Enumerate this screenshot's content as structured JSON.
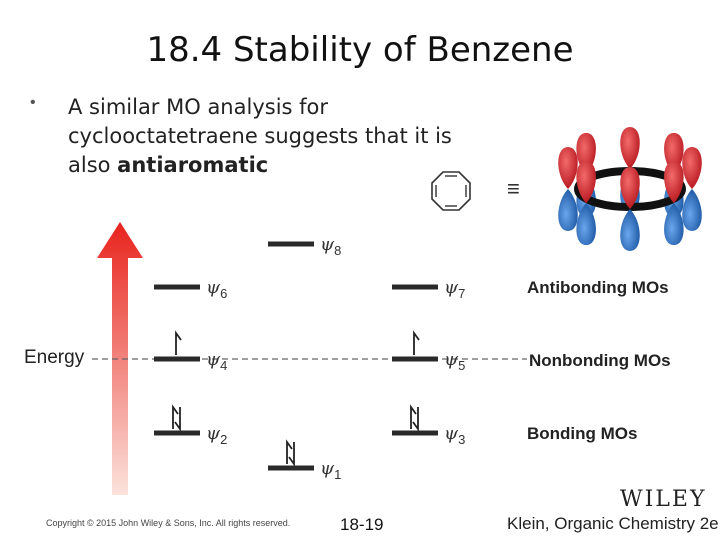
{
  "slide": {
    "title": "18.4 Stability of Benzene",
    "bullet_marker": "•",
    "bullet_text_1": "A similar MO analysis for cyclooctatetraene suggests that it is also ",
    "bullet_text_bold": "antiaromatic",
    "equiv_symbol": "≡"
  },
  "diagram": {
    "energy_label": "Energy",
    "group_labels": {
      "antibonding": "Antibonding MOs",
      "nonbonding": "Nonbonding MOs",
      "bonding": "Bonding MOs"
    },
    "mo_levels": [
      {
        "name": "ψ8",
        "sub": "8",
        "electrons": 0
      },
      {
        "name": "ψ6",
        "sub": "6",
        "electrons": 0
      },
      {
        "name": "ψ7",
        "sub": "7",
        "electrons": 0
      },
      {
        "name": "ψ4",
        "sub": "4",
        "electrons": 1
      },
      {
        "name": "ψ5",
        "sub": "5",
        "electrons": 1
      },
      {
        "name": "ψ2",
        "sub": "2",
        "electrons": 2
      },
      {
        "name": "ψ3",
        "sub": "3",
        "electrons": 2
      },
      {
        "name": "ψ1",
        "sub": "1",
        "electrons": 2
      }
    ],
    "colors": {
      "arrow_top": "#e8231c",
      "arrow_bottom": "#fbe3dc",
      "lobe_red": "#d9212b",
      "lobe_blue": "#1f6fc6"
    }
  },
  "footer": {
    "copyright": "Copyright © 2015 John Wiley & Sons, Inc. All rights reserved.",
    "page": "18-19",
    "publisher_logo": "WILEY",
    "book": "Klein, Organic Chemistry 2e"
  }
}
